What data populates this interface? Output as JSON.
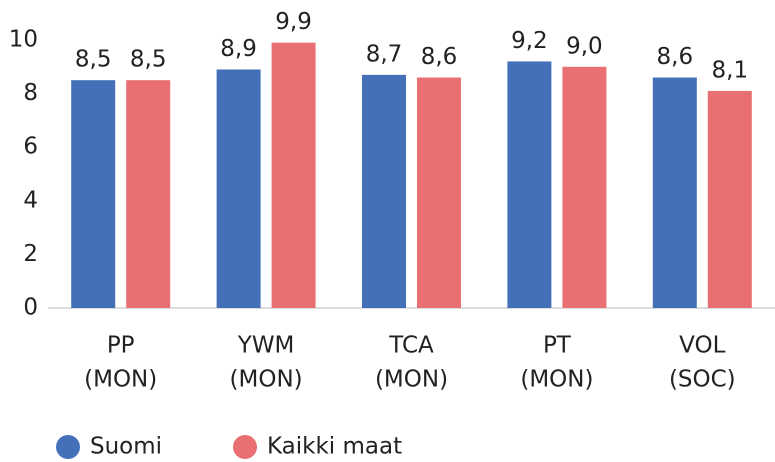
{
  "chart_data": {
    "type": "bar",
    "categories": [
      [
        "PP",
        "(MON)"
      ],
      [
        "YWM",
        "(MON)"
      ],
      [
        "TCA",
        "(MON)"
      ],
      [
        "PT",
        "(MON)"
      ],
      [
        "VOL",
        "(SOC)"
      ]
    ],
    "series": [
      {
        "name": "Suomi",
        "color": "#4470b8",
        "values": [
          8.5,
          8.9,
          8.7,
          9.2,
          8.6
        ],
        "value_labels": [
          "8,5",
          "8,9",
          "8,7",
          "9,2",
          "8,6"
        ]
      },
      {
        "name": "Kaikki maat",
        "color": "#e87072",
        "values": [
          8.5,
          9.9,
          8.6,
          9.0,
          8.1
        ],
        "value_labels": [
          "8,5",
          "9,9",
          "8,6",
          "9,0",
          "8,1"
        ]
      }
    ],
    "ylim": [
      0,
      10
    ],
    "yticks": [
      0,
      2,
      4,
      6,
      8,
      10
    ],
    "grid": false,
    "legend": "bottom"
  }
}
